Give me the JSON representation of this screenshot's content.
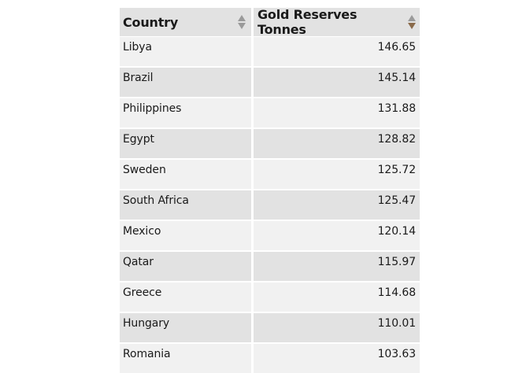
{
  "table": {
    "headers": {
      "country": "Country",
      "gold": "Gold Reserves Tonnes"
    },
    "rows": [
      {
        "country": "Libya",
        "gold": "146.65"
      },
      {
        "country": "Brazil",
        "gold": "145.14"
      },
      {
        "country": "Philippines",
        "gold": "131.88"
      },
      {
        "country": "Egypt",
        "gold": "128.82"
      },
      {
        "country": "Sweden",
        "gold": "125.72"
      },
      {
        "country": "South Africa",
        "gold": "125.47"
      },
      {
        "country": "Mexico",
        "gold": "120.14"
      },
      {
        "country": "Qatar",
        "gold": "115.97"
      },
      {
        "country": "Greece",
        "gold": "114.68"
      },
      {
        "country": "Hungary",
        "gold": "110.01"
      },
      {
        "country": "Romania",
        "gold": "103.63"
      }
    ],
    "sort": {
      "column": "gold",
      "direction": "descending"
    },
    "colors": {
      "header_bg": "#e2e2e2",
      "row_light": "#f1f1f1",
      "row_dark": "#e2e2e2",
      "sort_inactive": "#9a9a9a",
      "sort_active": "#8a6a4a"
    },
    "icons": {
      "country_sort": "sort-arrows-icon",
      "gold_sort": "sort-arrows-desc-active-icon"
    }
  }
}
